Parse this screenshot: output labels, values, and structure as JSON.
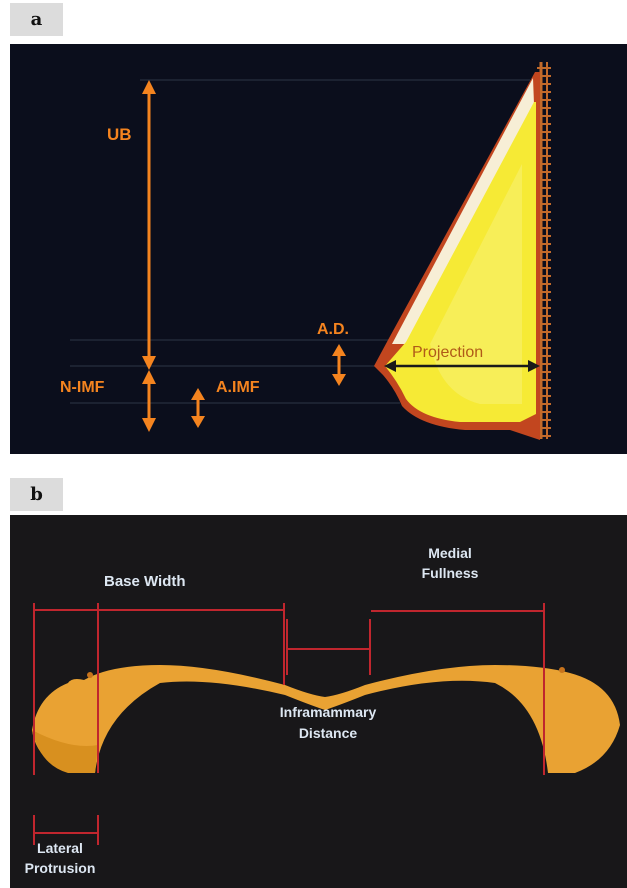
{
  "panel_a": {
    "tag": "a",
    "labels": {
      "ub": "UB",
      "n_imf": "N-IMF",
      "a_imf": "A.IMF",
      "a_d": "A.D.",
      "projection": "Projection"
    }
  },
  "panel_b": {
    "tag": "b",
    "labels": {
      "base_width": "Base Width",
      "medial_fullness_line1": "Medial",
      "medial_fullness_line2": "Fullness",
      "inframammary_line1": "Inframammary",
      "inframammary_line2": "Distance",
      "lateral_line1": "Lateral",
      "lateral_line2": "Protrusion"
    }
  },
  "colors": {
    "orange_label": "#f5841f",
    "breast_fill": "#f7ee3a",
    "shape_b_fill": "#e9a233",
    "measure_line_b": "#c0262e",
    "text_b": "#dde7f2"
  }
}
